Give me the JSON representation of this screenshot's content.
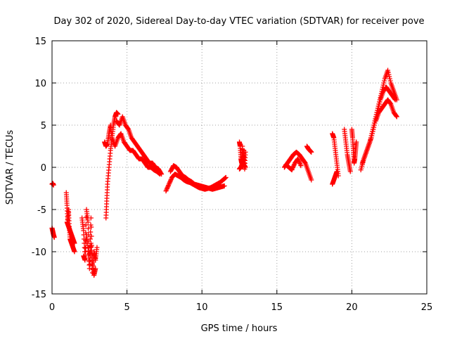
{
  "chart_data": {
    "type": "scatter",
    "title": "Day 302 of 2020, Sidereal Day-to-day VTEC variation (SDTVAR) for receiver pove",
    "xlabel": "GPS time / hours",
    "ylabel": "SDTVAR / TECUs",
    "xlim": [
      0,
      25
    ],
    "ylim": [
      -15,
      15
    ],
    "xticks": [
      0,
      5,
      10,
      15,
      20,
      25
    ],
    "yticks": [
      -15,
      -10,
      -5,
      0,
      5,
      10,
      15
    ],
    "grid": true,
    "marker": "+",
    "color": "#ff0000",
    "series": [
      {
        "name": "SDTVAR",
        "segments": [
          {
            "x": [
              0.0,
              0.05,
              0.1
            ],
            "y": [
              -2.0,
              -1.9,
              -2.1
            ]
          },
          {
            "x": [
              0.0,
              0.05,
              0.1,
              0.15
            ],
            "y": [
              -7.2,
              -7.6,
              -8.0,
              -8.3
            ]
          },
          {
            "x": [
              0.95,
              1.0,
              1.05,
              1.1,
              1.15,
              1.2,
              1.3,
              1.4,
              1.5
            ],
            "y": [
              -3.0,
              -4.5,
              -6.5,
              -5.0,
              -7.0,
              -8.5,
              -9.0,
              -9.5,
              -10.0
            ]
          },
          {
            "x": [
              1.0,
              1.1,
              1.2,
              1.3,
              1.4,
              1.5
            ],
            "y": [
              -6.5,
              -7.0,
              -7.5,
              -8.0,
              -8.5,
              -9.0
            ]
          },
          {
            "x": [
              2.0,
              2.1,
              2.2,
              2.3,
              2.4,
              2.5,
              2.6,
              2.7,
              2.8,
              2.9,
              3.0
            ],
            "y": [
              -6.0,
              -7.5,
              -10.5,
              -5.0,
              -6.5,
              -11.0,
              -6.0,
              -12.5,
              -10.0,
              -11.0,
              -9.5
            ]
          },
          {
            "x": [
              2.1,
              2.2,
              2.3,
              2.4,
              2.5,
              2.6,
              2.7,
              2.8,
              2.9
            ],
            "y": [
              -10.5,
              -11.0,
              -8.0,
              -9.5,
              -12.0,
              -9.0,
              -11.5,
              -12.8,
              -12.0
            ]
          },
          {
            "x": [
              3.6,
              3.65,
              3.7,
              3.8,
              3.9,
              4.0,
              4.1,
              4.2,
              4.3,
              4.4
            ],
            "y": [
              -6.0,
              -4.0,
              -2.0,
              0.0,
              2.0,
              3.5,
              5.0,
              6.0,
              6.5,
              6.3
            ]
          },
          {
            "x": [
              3.5,
              3.6,
              3.7,
              3.8,
              3.9,
              4.0,
              4.2,
              4.4,
              4.6,
              4.8,
              5.0,
              5.2,
              5.4,
              5.6,
              5.8,
              6.0,
              6.2,
              6.4,
              6.6,
              6.8,
              7.0,
              7.2
            ],
            "y": [
              3.0,
              2.5,
              2.8,
              4.0,
              5.0,
              3.5,
              2.5,
              3.5,
              4.0,
              3.0,
              2.5,
              2.0,
              2.0,
              1.5,
              1.0,
              1.0,
              0.5,
              0.0,
              0.0,
              -0.3,
              -0.5,
              -0.8
            ]
          },
          {
            "x": [
              4.3,
              4.5,
              4.7,
              4.9,
              5.1,
              5.3,
              5.5,
              5.7,
              5.9,
              6.1,
              6.3,
              6.5,
              6.7,
              6.9,
              7.1,
              7.3
            ],
            "y": [
              5.5,
              5.0,
              6.0,
              5.0,
              4.5,
              3.5,
              3.0,
              2.5,
              2.0,
              1.5,
              1.0,
              0.5,
              0.5,
              0.0,
              -0.2,
              -0.8
            ]
          },
          {
            "x": [
              7.6,
              7.8,
              8.0,
              8.2,
              8.4,
              8.6,
              8.8,
              9.0,
              9.2,
              9.4,
              9.6,
              9.8,
              10.0,
              10.2,
              10.4,
              10.6,
              10.8,
              11.0,
              11.2,
              11.4,
              11.6
            ],
            "y": [
              -2.8,
              -2.0,
              -1.2,
              -0.8,
              -1.0,
              -1.2,
              -1.5,
              -1.7,
              -1.8,
              -2.0,
              -2.2,
              -2.4,
              -2.5,
              -2.6,
              -2.5,
              -2.4,
              -2.2,
              -2.0,
              -1.8,
              -1.5,
              -1.2
            ]
          },
          {
            "x": [
              7.9,
              8.1,
              8.3,
              8.5,
              8.7,
              8.9,
              9.1,
              9.3,
              9.5,
              9.7,
              9.9,
              10.1,
              10.3,
              10.5,
              10.7,
              10.9,
              11.1,
              11.3,
              11.5
            ],
            "y": [
              -0.5,
              0.2,
              0.0,
              -0.5,
              -1.0,
              -1.2,
              -1.5,
              -1.7,
              -2.0,
              -2.1,
              -2.2,
              -2.3,
              -2.4,
              -2.5,
              -2.6,
              -2.5,
              -2.4,
              -2.3,
              -2.2
            ]
          },
          {
            "x": [
              12.5,
              12.55,
              12.6,
              12.65,
              12.7,
              12.75,
              12.8,
              12.85,
              12.9
            ],
            "y": [
              3.0,
              2.5,
              1.0,
              0.5,
              2.5,
              0.0,
              2.0,
              -0.2,
              1.8
            ]
          },
          {
            "x": [
              12.5,
              12.6,
              12.7,
              12.8,
              12.9
            ],
            "y": [
              -0.2,
              0.0,
              0.5,
              0.3,
              0.0
            ]
          },
          {
            "x": [
              15.5,
              15.7,
              15.9,
              16.1,
              16.3,
              16.5,
              16.7,
              16.9,
              17.1,
              17.3
            ],
            "y": [
              0.0,
              0.5,
              1.0,
              1.5,
              1.8,
              1.5,
              1.0,
              0.5,
              -0.5,
              -1.5
            ]
          },
          {
            "x": [
              15.6,
              15.8,
              16.0,
              16.2,
              16.4,
              16.6
            ],
            "y": [
              0.3,
              0.0,
              -0.3,
              0.5,
              1.0,
              0.2
            ]
          },
          {
            "x": [
              17.0,
              17.1,
              17.2,
              17.3
            ],
            "y": [
              2.5,
              2.2,
              2.0,
              1.8
            ]
          },
          {
            "x": [
              18.7,
              18.8,
              18.9,
              19.0,
              19.1
            ],
            "y": [
              4.0,
              3.5,
              2.0,
              0.5,
              -1.0
            ]
          },
          {
            "x": [
              18.7,
              18.8,
              18.9,
              19.0
            ],
            "y": [
              -2.0,
              -1.5,
              -1.0,
              -0.5
            ]
          },
          {
            "x": [
              19.5,
              19.6,
              19.7,
              19.8,
              19.9
            ],
            "y": [
              4.5,
              3.0,
              1.5,
              0.5,
              -0.5
            ]
          },
          {
            "x": [
              20.0,
              20.05,
              20.1,
              20.15,
              20.2,
              20.25,
              20.3
            ],
            "y": [
              4.5,
              3.5,
              2.0,
              0.5,
              1.0,
              2.0,
              3.0
            ]
          },
          {
            "x": [
              20.6,
              20.8,
              21.0,
              21.2,
              21.4,
              21.6,
              21.8,
              22.0,
              22.2,
              22.4,
              22.6,
              22.8,
              23.0
            ],
            "y": [
              -0.3,
              1.0,
              2.0,
              3.0,
              4.5,
              6.0,
              7.5,
              9.0,
              10.5,
              11.5,
              10.0,
              9.0,
              8.0
            ]
          },
          {
            "x": [
              20.7,
              20.9,
              21.1,
              21.3,
              21.5,
              21.7,
              21.9,
              22.1,
              22.3,
              22.5,
              22.7,
              22.9
            ],
            "y": [
              0.5,
              1.5,
              2.5,
              3.5,
              5.0,
              6.5,
              8.0,
              9.0,
              9.5,
              9.0,
              8.5,
              8.0
            ]
          },
          {
            "x": [
              21.6,
              21.8,
              22.0,
              22.2,
              22.4,
              22.6,
              22.8,
              23.0
            ],
            "y": [
              5.5,
              6.5,
              7.0,
              7.5,
              8.0,
              7.5,
              6.5,
              6.0
            ]
          }
        ]
      }
    ]
  }
}
